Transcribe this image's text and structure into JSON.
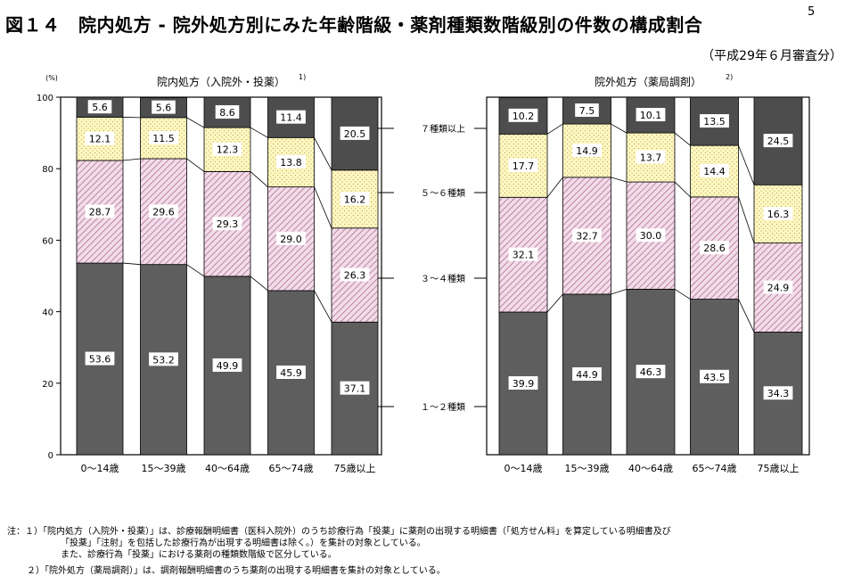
{
  "header": {
    "title": "図１４　院内処方 - 院外処方別にみた年齢階級・薬剤種類数階級別の件数の構成割合",
    "footnote_mark": "5",
    "subtitle": "（平成29年６月審査分）"
  },
  "colors": {
    "band_1_2": "#5e5e5e",
    "band_3_4_bg": "#f3dcea",
    "band_3_4_hatch": "#b0708e",
    "band_5_6_bg": "#fff7c0",
    "band_5_6_dots": "#9a8a3a",
    "band_7plus": "#4d4d4d",
    "gap": "#ffffff"
  },
  "chart_data": [
    {
      "type": "bar",
      "stacked": true,
      "title": "院内処方（入院外・投薬）",
      "title_superscript": "1)",
      "ylabel": "(%)",
      "ylim": [
        0,
        100
      ],
      "yticks": [
        "0",
        "20",
        "40",
        "60",
        "80",
        "100"
      ],
      "categories": [
        "0～14歳",
        "15～39歳",
        "40～64歳",
        "65～74歳",
        "75歳以上"
      ],
      "series": [
        {
          "name": "１～２種類",
          "values": [
            53.6,
            53.2,
            49.9,
            45.9,
            37.1
          ]
        },
        {
          "name": "３～４種類",
          "values": [
            28.7,
            29.6,
            29.3,
            29.0,
            26.3
          ]
        },
        {
          "name": "５～６種類",
          "values": [
            12.1,
            11.5,
            12.3,
            13.8,
            16.2
          ]
        },
        {
          "name": "７種類以上",
          "values": [
            5.6,
            5.6,
            8.6,
            11.4,
            20.5
          ]
        }
      ],
      "value_labels": [
        [
          "53.6",
          "53.2",
          "49.9",
          "45.9",
          "37.1"
        ],
        [
          "28.7",
          "29.6",
          "29.3",
          "29.0",
          "26.3"
        ],
        [
          "12.1",
          "11.5",
          "12.3",
          "13.8",
          "16.2"
        ],
        [
          "5.6",
          "5.6",
          "8.6",
          "11.4",
          "20.5"
        ]
      ]
    },
    {
      "type": "bar",
      "stacked": true,
      "title": "院外処方（薬局調剤）",
      "title_superscript": "2)",
      "ylim": [
        0,
        100
      ],
      "categories": [
        "0～14歳",
        "15～39歳",
        "40～64歳",
        "65～74歳",
        "75歳以上"
      ],
      "series": [
        {
          "name": "１～２種類",
          "values": [
            39.9,
            44.9,
            46.3,
            43.5,
            34.3
          ]
        },
        {
          "name": "３～４種類",
          "values": [
            32.1,
            32.7,
            30.0,
            28.6,
            24.9
          ]
        },
        {
          "name": "５～６種類",
          "values": [
            17.7,
            14.9,
            13.7,
            14.4,
            16.3
          ]
        },
        {
          "name": "７種類以上",
          "values": [
            10.2,
            7.5,
            10.1,
            13.5,
            24.5
          ]
        }
      ],
      "value_labels": [
        [
          "39.9",
          "44.9",
          "46.3",
          "43.5",
          "34.3"
        ],
        [
          "32.1",
          "32.7",
          "30.0",
          "28.6",
          "24.9"
        ],
        [
          "17.7",
          "14.9",
          "13.7",
          "14.4",
          "16.3"
        ],
        [
          "10.2",
          "7.5",
          "10.1",
          "13.5",
          "24.5"
        ]
      ]
    }
  ],
  "legend_labels": [
    "７種類以上",
    "５～６種類",
    "３～４種類",
    "１～２種類"
  ],
  "notes": {
    "line1": "注：１）「院内処方（入院外・投薬）」は、診療報酬明細書（医科入院外）のうち診療行為「投薬」に薬剤の出現する明細書（「処方せん料」を算定している明細書及び",
    "line2": "「投薬」「注射」を包括した診療行為が出現する明細書は除く。）を集計の対象としている。",
    "line3": "また、診療行為「投薬」における薬剤の種類数階級で区分している。",
    "line4": "２）「院外処方（薬局調剤）」は、調剤報酬明細書のうち薬剤の出現する明細書を集計の対象としている。"
  }
}
